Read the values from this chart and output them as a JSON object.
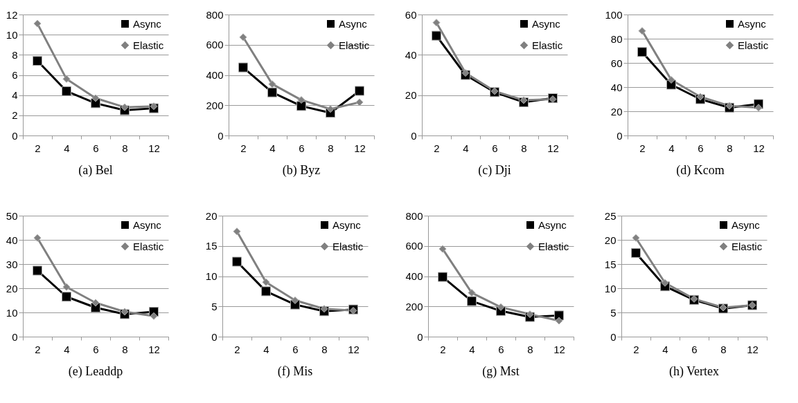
{
  "chart_data": [
    {
      "type": "line",
      "title": "(a) Bel",
      "categories": [
        "2",
        "4",
        "6",
        "8",
        "12"
      ],
      "ylim": [
        0,
        12
      ],
      "yticks": [
        0,
        2,
        4,
        6,
        8,
        10,
        12
      ],
      "grid": "y",
      "legend": "top right",
      "series": [
        {
          "name": "Async",
          "color": "#000000",
          "marker": "square",
          "values": [
            7.4,
            4.4,
            3.2,
            2.5,
            2.7
          ]
        },
        {
          "name": "Elastic",
          "color": "#808080",
          "marker": "diamond",
          "values": [
            11.1,
            5.6,
            3.7,
            2.8,
            2.9
          ]
        }
      ]
    },
    {
      "type": "line",
      "title": "(b) Byz",
      "categories": [
        "2",
        "4",
        "6",
        "8",
        "12"
      ],
      "ylim": [
        0,
        800
      ],
      "yticks": [
        0,
        200,
        400,
        600,
        800
      ],
      "grid": "y",
      "legend": "top right",
      "series": [
        {
          "name": "Async",
          "color": "#000000",
          "marker": "square",
          "values": [
            450,
            285,
            195,
            150,
            295
          ]
        },
        {
          "name": "Elastic",
          "color": "#808080",
          "marker": "diamond",
          "values": [
            650,
            340,
            235,
            175,
            220
          ]
        }
      ]
    },
    {
      "type": "line",
      "title": "(c) Dji",
      "categories": [
        "2",
        "4",
        "6",
        "8",
        "12"
      ],
      "ylim": [
        0,
        60
      ],
      "yticks": [
        0,
        20,
        40,
        60
      ],
      "grid": "y",
      "legend": "top right",
      "series": [
        {
          "name": "Async",
          "color": "#000000",
          "marker": "square",
          "values": [
            49.5,
            30,
            21.5,
            16.5,
            18.5
          ]
        },
        {
          "name": "Elastic",
          "color": "#808080",
          "marker": "diamond",
          "values": [
            56,
            31,
            22,
            17.5,
            18
          ]
        }
      ]
    },
    {
      "type": "line",
      "title": "(d) Kcom",
      "categories": [
        "2",
        "4",
        "6",
        "8",
        "12"
      ],
      "ylim": [
        0,
        100
      ],
      "yticks": [
        0,
        20,
        40,
        60,
        80,
        100
      ],
      "grid": "y",
      "legend": "top right",
      "series": [
        {
          "name": "Async",
          "color": "#000000",
          "marker": "square",
          "values": [
            69,
            42,
            30,
            23,
            26
          ]
        },
        {
          "name": "Elastic",
          "color": "#808080",
          "marker": "diamond",
          "values": [
            86.5,
            46,
            32,
            24.5,
            23
          ]
        }
      ]
    },
    {
      "type": "line",
      "title": "(e) Leaddp",
      "categories": [
        "2",
        "4",
        "6",
        "8",
        "12"
      ],
      "ylim": [
        0,
        50
      ],
      "yticks": [
        0,
        10,
        20,
        30,
        40,
        50
      ],
      "grid": "y",
      "legend": "top right",
      "series": [
        {
          "name": "Async",
          "color": "#000000",
          "marker": "square",
          "values": [
            27.3,
            16.5,
            12,
            9.3,
            10.3
          ]
        },
        {
          "name": "Elastic",
          "color": "#808080",
          "marker": "diamond",
          "values": [
            40.8,
            20.5,
            14,
            10.3,
            8.5
          ]
        }
      ]
    },
    {
      "type": "line",
      "title": "(f) Mis",
      "categories": [
        "2",
        "4",
        "6",
        "8",
        "12"
      ],
      "ylim": [
        0,
        20
      ],
      "yticks": [
        0,
        5,
        10,
        15,
        20
      ],
      "grid": "y",
      "legend": "top right",
      "series": [
        {
          "name": "Async",
          "color": "#000000",
          "marker": "square",
          "values": [
            12.4,
            7.5,
            5.3,
            4.2,
            4.5
          ]
        },
        {
          "name": "Elastic",
          "color": "#808080",
          "marker": "diamond",
          "values": [
            17.4,
            9,
            6,
            4.6,
            4.3
          ]
        }
      ]
    },
    {
      "type": "line",
      "title": "(g) Mst",
      "categories": [
        "2",
        "4",
        "6",
        "8",
        "12"
      ],
      "ylim": [
        0,
        800
      ],
      "yticks": [
        0,
        200,
        400,
        600,
        800
      ],
      "grid": "y",
      "legend": "top right",
      "series": [
        {
          "name": "Async",
          "color": "#000000",
          "marker": "square",
          "values": [
            395,
            235,
            170,
            130,
            140
          ]
        },
        {
          "name": "Elastic",
          "color": "#808080",
          "marker": "diamond",
          "values": [
            580,
            290,
            195,
            148,
            105
          ]
        }
      ]
    },
    {
      "type": "line",
      "title": "(h) Vertex",
      "categories": [
        "2",
        "4",
        "6",
        "8",
        "12"
      ],
      "ylim": [
        0,
        25
      ],
      "yticks": [
        0,
        5,
        10,
        15,
        20,
        25
      ],
      "grid": "y",
      "legend": "top right",
      "series": [
        {
          "name": "Async",
          "color": "#000000",
          "marker": "square",
          "values": [
            17.3,
            10.4,
            7.6,
            5.8,
            6.5
          ]
        },
        {
          "name": "Elastic",
          "color": "#808080",
          "marker": "diamond",
          "values": [
            20.4,
            11.1,
            7.8,
            6,
            6.5
          ]
        }
      ]
    }
  ]
}
